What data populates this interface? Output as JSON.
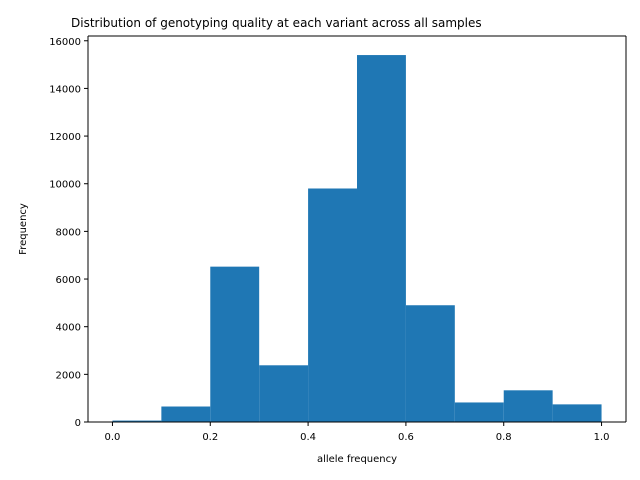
{
  "chart_data": {
    "type": "bar",
    "title": "Distribution of genotyping quality at each variant across all samples",
    "xlabel": "allele frequency",
    "ylabel": "Frequency",
    "xlim": [
      -0.05,
      1.05
    ],
    "ylim": [
      0,
      16200
    ],
    "xticks": [
      0.0,
      0.2,
      0.4,
      0.6,
      0.8,
      1.0
    ],
    "xtick_labels": [
      "0.0",
      "0.2",
      "0.4",
      "0.6",
      "0.8",
      "1.0"
    ],
    "yticks": [
      0,
      2000,
      4000,
      6000,
      8000,
      10000,
      12000,
      14000,
      16000
    ],
    "ytick_labels": [
      "0",
      "2000",
      "4000",
      "6000",
      "8000",
      "10000",
      "12000",
      "14000",
      "16000"
    ],
    "bins": [
      {
        "x0": 0.0,
        "x1": 0.1,
        "value": 60
      },
      {
        "x0": 0.1,
        "x1": 0.2,
        "value": 650
      },
      {
        "x0": 0.2,
        "x1": 0.3,
        "value": 6520
      },
      {
        "x0": 0.3,
        "x1": 0.4,
        "value": 2380
      },
      {
        "x0": 0.4,
        "x1": 0.5,
        "value": 9800
      },
      {
        "x0": 0.5,
        "x1": 0.6,
        "value": 15400
      },
      {
        "x0": 0.6,
        "x1": 0.7,
        "value": 4900
      },
      {
        "x0": 0.7,
        "x1": 0.8,
        "value": 820
      },
      {
        "x0": 0.8,
        "x1": 0.9,
        "value": 1330
      },
      {
        "x0": 0.9,
        "x1": 1.0,
        "value": 740
      }
    ],
    "bar_color": "#1f77b4",
    "grid": false,
    "legend": "none"
  }
}
